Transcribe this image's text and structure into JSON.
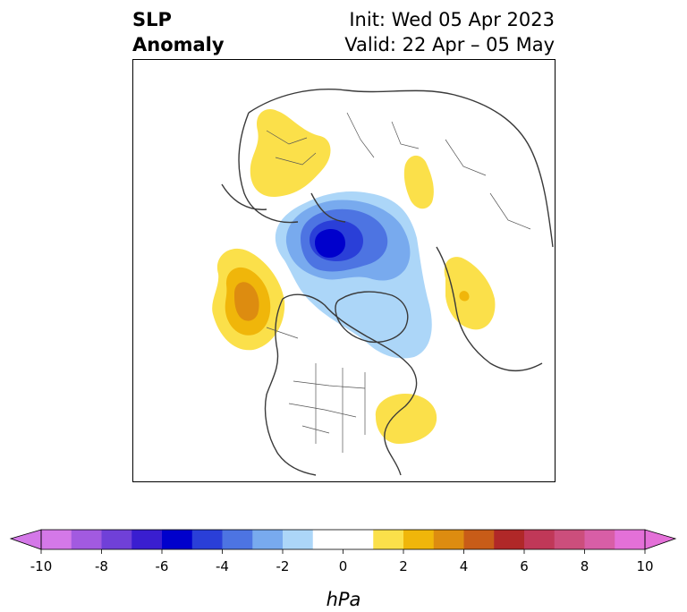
{
  "title": {
    "left_line1": "SLP",
    "left_line2": "Anomaly",
    "init": "Init: Wed 05 Apr 2023",
    "valid": "Valid: 22 Apr – 05 May"
  },
  "colorbar": {
    "unit": "hPa",
    "ticks": [
      "-10",
      "-8",
      "-6",
      "-4",
      "-2",
      "0",
      "2",
      "4",
      "6",
      "8",
      "10"
    ],
    "colors": [
      "#d478e8",
      "#a25ae0",
      "#7040d8",
      "#3a1ed0",
      "#0000cc",
      "#2a3fd8",
      "#4d74e2",
      "#78aaee",
      "#acd6f8",
      "#ffffff",
      "#ffffff",
      "#fbe04a",
      "#f0b60a",
      "#dd8c10",
      "#c85c18",
      "#b02828",
      "#c03858",
      "#cc4e7c",
      "#d85ea6",
      "#e470d8"
    ],
    "extend": "both"
  },
  "map": {
    "anomalies": [
      {
        "sign": "negative",
        "level": "-6",
        "color": "#0000cc"
      },
      {
        "sign": "negative",
        "level": "-2",
        "color": "#acd6f8"
      },
      {
        "sign": "positive",
        "level": "4",
        "color": "#dd8c10"
      },
      {
        "sign": "positive",
        "level": "2",
        "color": "#fbe04a"
      }
    ]
  }
}
